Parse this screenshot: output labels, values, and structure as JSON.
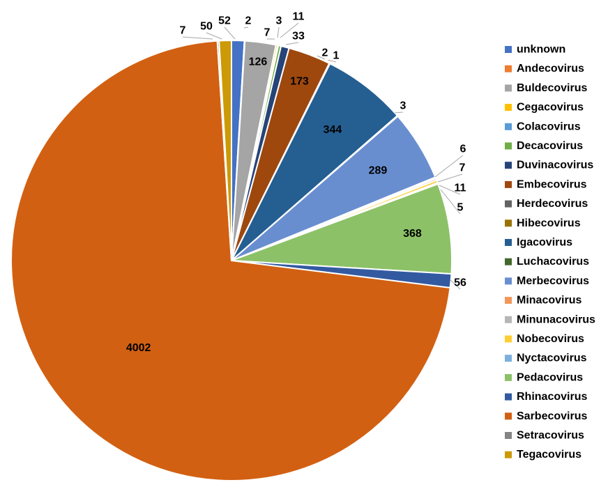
{
  "chart_data": {
    "type": "pie",
    "title": "",
    "legend_position": "right",
    "slices": [
      {
        "label": "unknown",
        "value": 52,
        "color": "#4472c4"
      },
      {
        "label": "Andecovirus",
        "value": 2,
        "color": "#ed7d31"
      },
      {
        "label": "Buldecovirus",
        "value": 126,
        "color": "#a5a5a5"
      },
      {
        "label": "Cegacovirus",
        "value": 7,
        "color": "#ffc000"
      },
      {
        "label": "Colacovirus",
        "value": 3,
        "color": "#5b9bd5"
      },
      {
        "label": "Decacovirus",
        "value": 11,
        "color": "#70ad47"
      },
      {
        "label": "Duvinacovirus",
        "value": 33,
        "color": "#264478"
      },
      {
        "label": "Embecovirus",
        "value": 173,
        "color": "#9e480e"
      },
      {
        "label": "Herdecovirus",
        "value": 2,
        "color": "#636363"
      },
      {
        "label": "Hibecovirus",
        "value": 1,
        "color": "#997300"
      },
      {
        "label": "Igacovirus",
        "value": 344,
        "color": "#255e91"
      },
      {
        "label": "Luchacovirus",
        "value": 3,
        "color": "#43682b"
      },
      {
        "label": "Merbecovirus",
        "value": 289,
        "color": "#698ed0"
      },
      {
        "label": "Minacovirus",
        "value": 6,
        "color": "#f1975a"
      },
      {
        "label": "Minunacovirus",
        "value": 7,
        "color": "#b7b7b7"
      },
      {
        "label": "Nobecovirus",
        "value": 11,
        "color": "#ffcd33"
      },
      {
        "label": "Nyctacovirus",
        "value": 5,
        "color": "#7cafdd"
      },
      {
        "label": "Pedacovirus",
        "value": 368,
        "color": "#8cc168"
      },
      {
        "label": "Rhinacovirus",
        "value": 56,
        "color": "#335aa1"
      },
      {
        "label": "Sarbecovirus",
        "value": 4002,
        "color": "#d26012"
      },
      {
        "label": "Setracovirus",
        "value": 7,
        "color": "#848484"
      },
      {
        "label": "Tegacovirus",
        "value": 50,
        "color": "#cc9a06"
      }
    ]
  }
}
